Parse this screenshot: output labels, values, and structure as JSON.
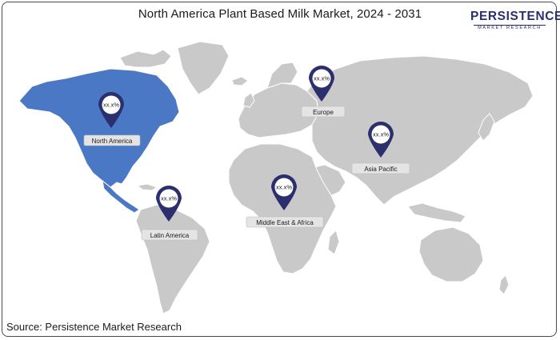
{
  "title": "North America Plant Based Milk Market, 2024 - 2031",
  "logo": {
    "main": "PERSISTENCE",
    "sub": "MARKET RESEARCH"
  },
  "source": "Source: Persistence Market Research",
  "colors": {
    "land": "#c9c9c9",
    "highlight": "#4b78c4",
    "pin": "#2b2f6e",
    "label_bg": "#e4e4e4"
  },
  "highlighted_region": "North America",
  "regions": [
    {
      "name": "North America",
      "value": "xx.x%"
    },
    {
      "name": "Europe",
      "value": "xx.x%"
    },
    {
      "name": "Asia Pacific",
      "value": "xx.x%"
    },
    {
      "name": "Latin America",
      "value": "xx.x%"
    },
    {
      "name": "Middle East & Africa",
      "value": "xx.x%"
    }
  ]
}
